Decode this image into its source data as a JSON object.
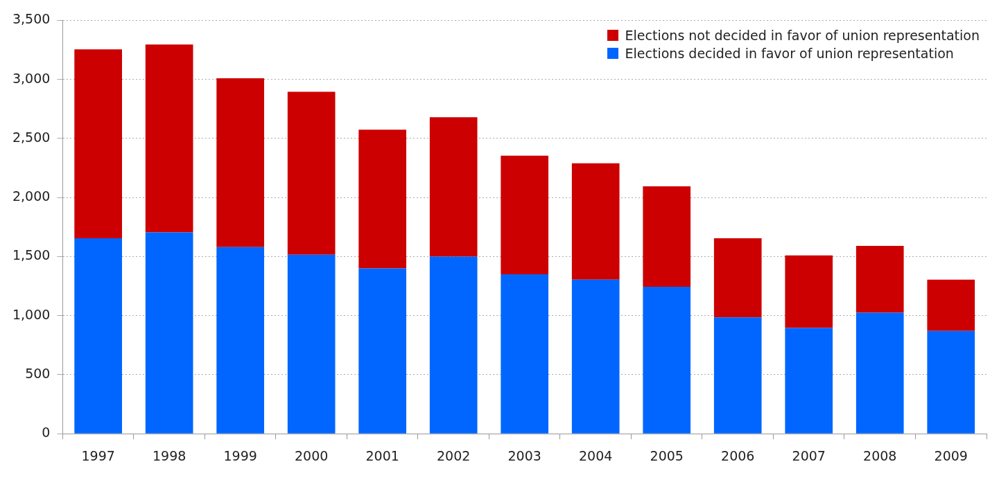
{
  "chart_data": {
    "type": "bar",
    "stacked": true,
    "categories": [
      "1997",
      "1998",
      "1999",
      "2000",
      "2001",
      "2002",
      "2003",
      "2004",
      "2005",
      "2006",
      "2007",
      "2008",
      "2009"
    ],
    "series": [
      {
        "name": "Elections decided in favor of union representation",
        "color": "#0066ff",
        "values": [
          1655,
          1705,
          1580,
          1515,
          1400,
          1500,
          1350,
          1305,
          1245,
          985,
          895,
          1025,
          870
        ]
      },
      {
        "name": "Elections not decided in favor of union representation",
        "color": "#cc0000",
        "values": [
          1600,
          1590,
          1430,
          1380,
          1175,
          1180,
          1005,
          985,
          850,
          670,
          615,
          565,
          435
        ]
      }
    ],
    "ylim": [
      0,
      3500
    ],
    "yticks": [
      {
        "value": 0,
        "label": "0"
      },
      {
        "value": 500,
        "label": "500"
      },
      {
        "value": 1000,
        "label": "1,000"
      },
      {
        "value": 1500,
        "label": "1,500"
      },
      {
        "value": 2000,
        "label": "2,000"
      },
      {
        "value": 2500,
        "label": "2,500"
      },
      {
        "value": 3000,
        "label": "3,000"
      },
      {
        "value": 3500,
        "label": "3,500"
      }
    ],
    "grid": "y",
    "legend": "top right"
  }
}
